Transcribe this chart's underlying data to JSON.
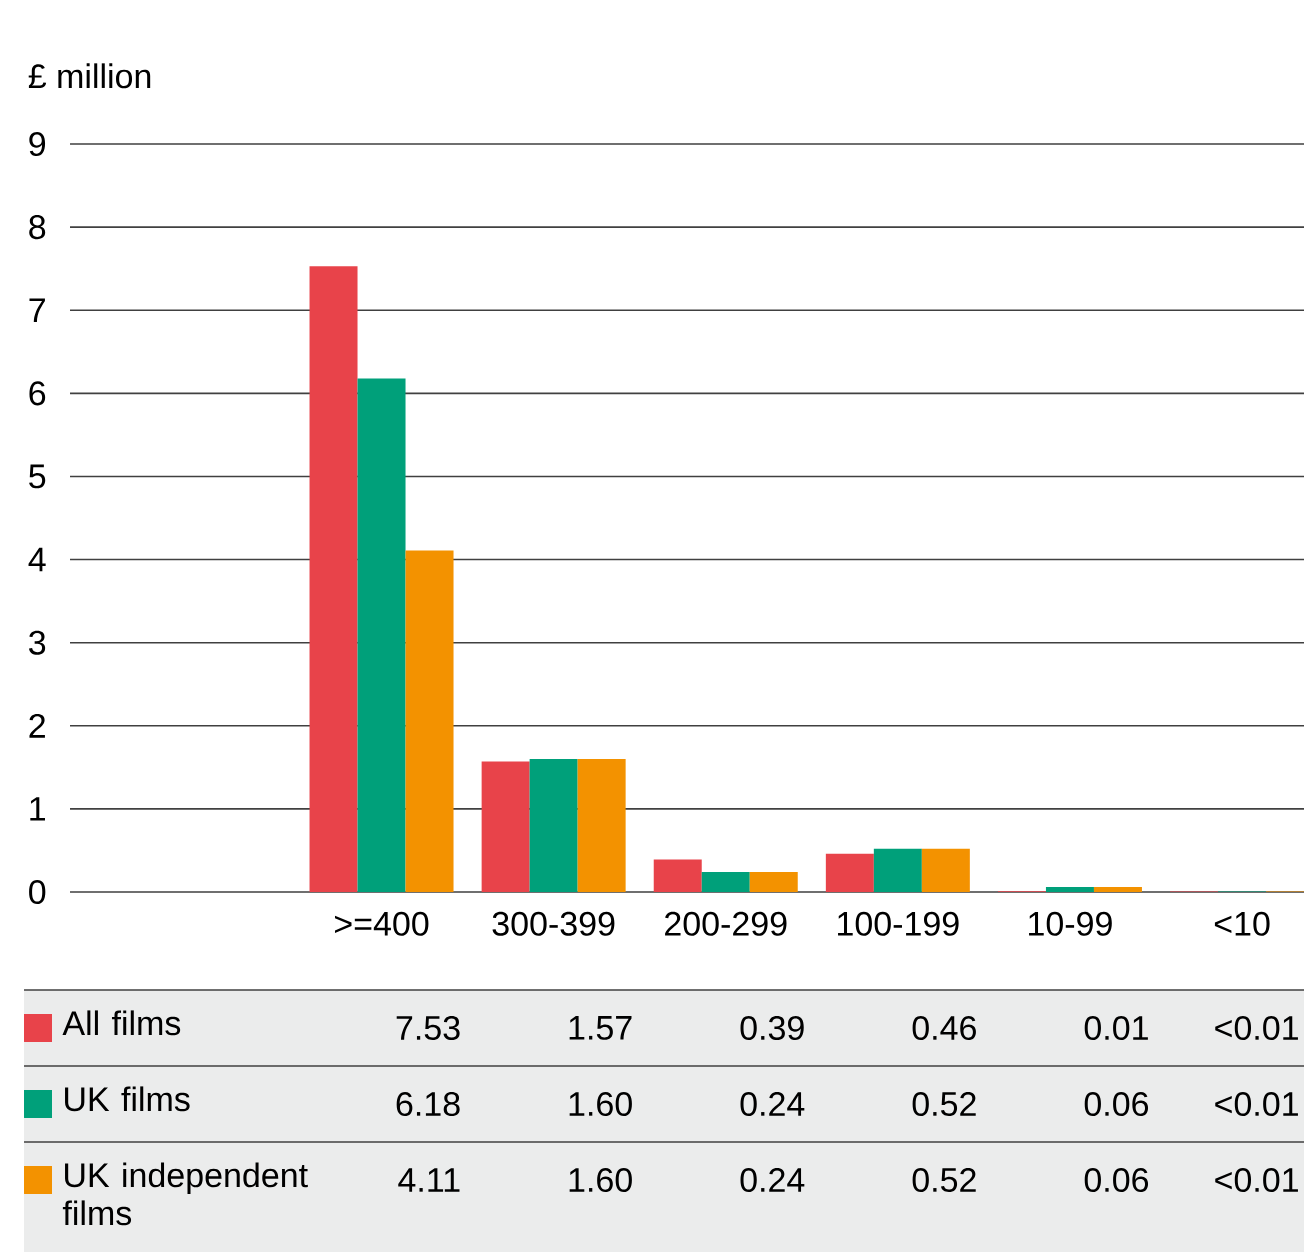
{
  "chart_data": {
    "type": "bar",
    "ylabel": "£ million",
    "categories": [
      ">=400",
      "300-399",
      "200-299",
      "100-199",
      "10-99",
      "<10"
    ],
    "series": [
      {
        "name": "All films",
        "color": "#e8434a",
        "values": [
          7.53,
          1.57,
          0.39,
          0.46,
          0.01,
          0.005
        ],
        "value_labels": [
          "7.53",
          "1.57",
          "0.39",
          "0.46",
          "0.01",
          "<0.01"
        ]
      },
      {
        "name": "UK films",
        "color": "#00a07a",
        "values": [
          6.18,
          1.6,
          0.24,
          0.52,
          0.06,
          0.005
        ],
        "value_labels": [
          "6.18",
          "1.60",
          "0.24",
          "0.52",
          "0.06",
          "<0.01"
        ]
      },
      {
        "name": "UK independent films",
        "color": "#f39200",
        "values": [
          4.11,
          1.6,
          0.24,
          0.52,
          0.06,
          0.005
        ],
        "value_labels": [
          "4.11",
          "1.60",
          "0.24",
          "0.52",
          "0.06",
          "<0.01"
        ]
      }
    ],
    "ylim": [
      0,
      9
    ],
    "yticks": [
      0,
      1,
      2,
      3,
      4,
      5,
      6,
      7,
      8,
      9
    ],
    "grid": "y",
    "legend": "bottom"
  }
}
